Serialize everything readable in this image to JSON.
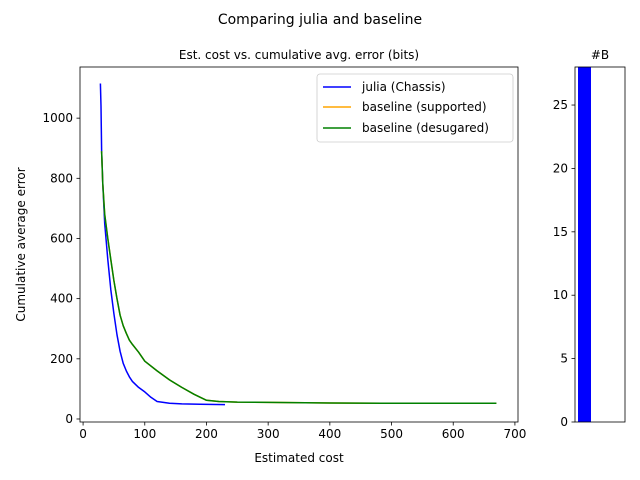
{
  "suptitle": "Comparing julia and baseline",
  "chart_data": [
    {
      "type": "line",
      "title": "Est. cost vs. cumulative avg. error (bits)",
      "xlabel": "Estimated cost",
      "ylabel": "Cumulative average error",
      "xlim": [
        -5,
        705
      ],
      "ylim": [
        -10,
        1170
      ],
      "xticks": [
        0,
        100,
        200,
        300,
        400,
        500,
        600,
        700
      ],
      "yticks": [
        0,
        200,
        400,
        600,
        800,
        1000
      ],
      "grid": false,
      "legend_position": "top-right",
      "series": [
        {
          "name": "julia (Chassis)",
          "color": "#0000ff",
          "points": [
            [
              28,
              1115
            ],
            [
              29,
              1040
            ],
            [
              30,
              895
            ],
            [
              32,
              780
            ],
            [
              35,
              650
            ],
            [
              40,
              530
            ],
            [
              45,
              430
            ],
            [
              50,
              350
            ],
            [
              55,
              280
            ],
            [
              60,
              225
            ],
            [
              65,
              185
            ],
            [
              70,
              160
            ],
            [
              75,
              140
            ],
            [
              80,
              125
            ],
            [
              90,
              105
            ],
            [
              100,
              90
            ],
            [
              110,
              72
            ],
            [
              120,
              58
            ],
            [
              140,
              52
            ],
            [
              160,
              50
            ],
            [
              190,
              49
            ],
            [
              230,
              48
            ]
          ]
        },
        {
          "name": "baseline (supported)",
          "color": "#ffa500",
          "points": [
            [
              30,
              890
            ],
            [
              32,
              780
            ],
            [
              35,
              680
            ],
            [
              40,
              600
            ],
            [
              45,
              530
            ],
            [
              50,
              460
            ],
            [
              55,
              400
            ],
            [
              60,
              345
            ],
            [
              65,
              310
            ],
            [
              70,
              285
            ],
            [
              75,
              262
            ],
            [
              80,
              248
            ],
            [
              90,
              222
            ],
            [
              100,
              192
            ],
            [
              120,
              160
            ],
            [
              140,
              130
            ],
            [
              160,
              105
            ],
            [
              180,
              82
            ],
            [
              200,
              62
            ],
            [
              220,
              58
            ],
            [
              250,
              56
            ],
            [
              300,
              55
            ],
            [
              400,
              53
            ],
            [
              500,
              52
            ],
            [
              670,
              52
            ]
          ]
        },
        {
          "name": "baseline (desugared)",
          "color": "#008000",
          "points": [
            [
              30,
              890
            ],
            [
              32,
              780
            ],
            [
              35,
              680
            ],
            [
              40,
              600
            ],
            [
              45,
              530
            ],
            [
              50,
              460
            ],
            [
              55,
              400
            ],
            [
              60,
              345
            ],
            [
              65,
              310
            ],
            [
              70,
              285
            ],
            [
              75,
              262
            ],
            [
              80,
              248
            ],
            [
              90,
              222
            ],
            [
              100,
              192
            ],
            [
              120,
              160
            ],
            [
              140,
              130
            ],
            [
              160,
              105
            ],
            [
              180,
              82
            ],
            [
              200,
              62
            ],
            [
              220,
              58
            ],
            [
              250,
              56
            ],
            [
              300,
              55
            ],
            [
              400,
              53
            ],
            [
              500,
              52
            ],
            [
              670,
              52
            ]
          ]
        }
      ]
    },
    {
      "type": "bar",
      "title": "#B",
      "ylim": [
        0,
        28
      ],
      "yticks": [
        0,
        5,
        10,
        15,
        20,
        25
      ],
      "values": [
        28
      ],
      "color": "#0000ff"
    }
  ]
}
